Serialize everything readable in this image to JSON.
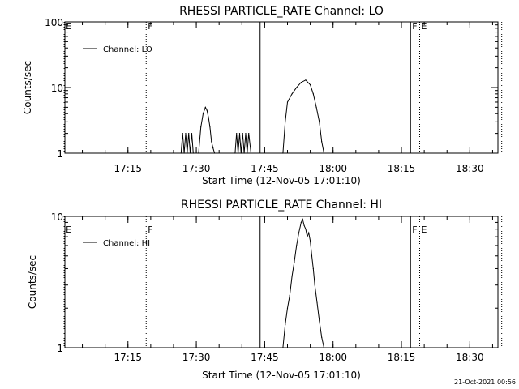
{
  "footer": {
    "timestamp": "21-Oct-2021 00:56"
  },
  "chart_data": [
    {
      "type": "line",
      "title": "RHESSI PARTICLE_RATE Channel: LO",
      "xlabel": "Start Time (12-Nov-05 17:01:10)",
      "ylabel": "Counts/sec",
      "x_unit": "minutes since 17:01:10 start",
      "xlim": [
        0,
        95
      ],
      "ylim": [
        1,
        100
      ],
      "yscale": "log",
      "x_ticks": [
        "17:15",
        "17:30",
        "17:45",
        "18:00",
        "18:15",
        "18:30"
      ],
      "y_ticks": [
        "1",
        "10",
        "100"
      ],
      "legend": {
        "position": "top-left",
        "entries": [
          "Channel: LO"
        ]
      },
      "flag_lines": [
        {
          "label": "E",
          "time": "17:01",
          "style": "dotted"
        },
        {
          "label": "F",
          "time": "17:19",
          "style": "dotted"
        },
        {
          "label": "",
          "time": "17:44",
          "style": "solid"
        },
        {
          "label": "F",
          "time": "18:17",
          "style": "solid"
        },
        {
          "label": "E",
          "time": "18:19",
          "style": "dotted"
        },
        {
          "label": "",
          "time": "18:37",
          "style": "dotted"
        }
      ],
      "series": [
        {
          "name": "Channel: LO",
          "time": [
            "17:26:40",
            "17:27:00",
            "17:27:20",
            "17:27:40",
            "17:28:00",
            "17:28:20",
            "17:28:40",
            "17:29:00",
            "17:29:20",
            "17:30:30",
            "17:31:00",
            "17:31:30",
            "17:32:00",
            "17:32:20",
            "17:32:40",
            "17:33:00",
            "17:33:20",
            "17:33:40",
            "17:34:00",
            "17:38:30",
            "17:38:50",
            "17:39:10",
            "17:39:30",
            "17:39:50",
            "17:40:10",
            "17:40:30",
            "17:40:50",
            "17:41:10",
            "17:41:30",
            "17:42:00",
            "17:49:00",
            "17:49:30",
            "17:50:00",
            "17:51:00",
            "17:52:00",
            "17:53:00",
            "17:54:00",
            "17:55:00",
            "17:55:40",
            "17:56:20",
            "17:57:00",
            "17:57:30",
            "17:58:00"
          ],
          "values": [
            1,
            2,
            1,
            2,
            1,
            2,
            1,
            2,
            1,
            1,
            2.5,
            4,
            5,
            4.5,
            3.5,
            2.5,
            1.5,
            1.2,
            1,
            1,
            2,
            1,
            2,
            1,
            2,
            1,
            2,
            1,
            2,
            1,
            1,
            3,
            6,
            8,
            10,
            12,
            13,
            11,
            8,
            5,
            3,
            1.5,
            1
          ]
        }
      ]
    },
    {
      "type": "line",
      "title": "RHESSI PARTICLE_RATE Channel: HI",
      "xlabel": "Start Time (12-Nov-05 17:01:10)",
      "ylabel": "Counts/sec",
      "x_unit": "minutes since 17:01:10 start",
      "xlim": [
        0,
        95
      ],
      "ylim": [
        1,
        10
      ],
      "yscale": "log",
      "x_ticks": [
        "17:15",
        "17:30",
        "17:45",
        "18:00",
        "18:15",
        "18:30"
      ],
      "y_ticks": [
        "1",
        "10"
      ],
      "legend": {
        "position": "top-left",
        "entries": [
          "Channel: HI"
        ]
      },
      "flag_lines": [
        {
          "label": "E",
          "time": "17:01",
          "style": "dotted"
        },
        {
          "label": "F",
          "time": "17:19",
          "style": "dotted"
        },
        {
          "label": "",
          "time": "17:44",
          "style": "solid"
        },
        {
          "label": "F",
          "time": "18:17",
          "style": "solid"
        },
        {
          "label": "E",
          "time": "18:19",
          "style": "dotted"
        },
        {
          "label": "",
          "time": "18:37",
          "style": "dotted"
        }
      ],
      "series": [
        {
          "name": "Channel: HI",
          "time": [
            "17:49:00",
            "17:49:30",
            "17:50:00",
            "17:50:30",
            "17:51:00",
            "17:51:30",
            "17:52:00",
            "17:52:30",
            "17:53:00",
            "17:53:20",
            "17:53:40",
            "17:54:00",
            "17:54:20",
            "17:54:40",
            "17:55:00",
            "17:55:20",
            "17:55:40",
            "17:56:00",
            "17:56:30",
            "17:57:00",
            "17:57:30",
            "17:58:00"
          ],
          "values": [
            1,
            1.5,
            2,
            2.5,
            3.5,
            4.5,
            6,
            7.5,
            9,
            9.5,
            8.5,
            8,
            7,
            7.5,
            6.5,
            5,
            4,
            3,
            2.2,
            1.6,
            1.2,
            1
          ]
        }
      ]
    }
  ]
}
